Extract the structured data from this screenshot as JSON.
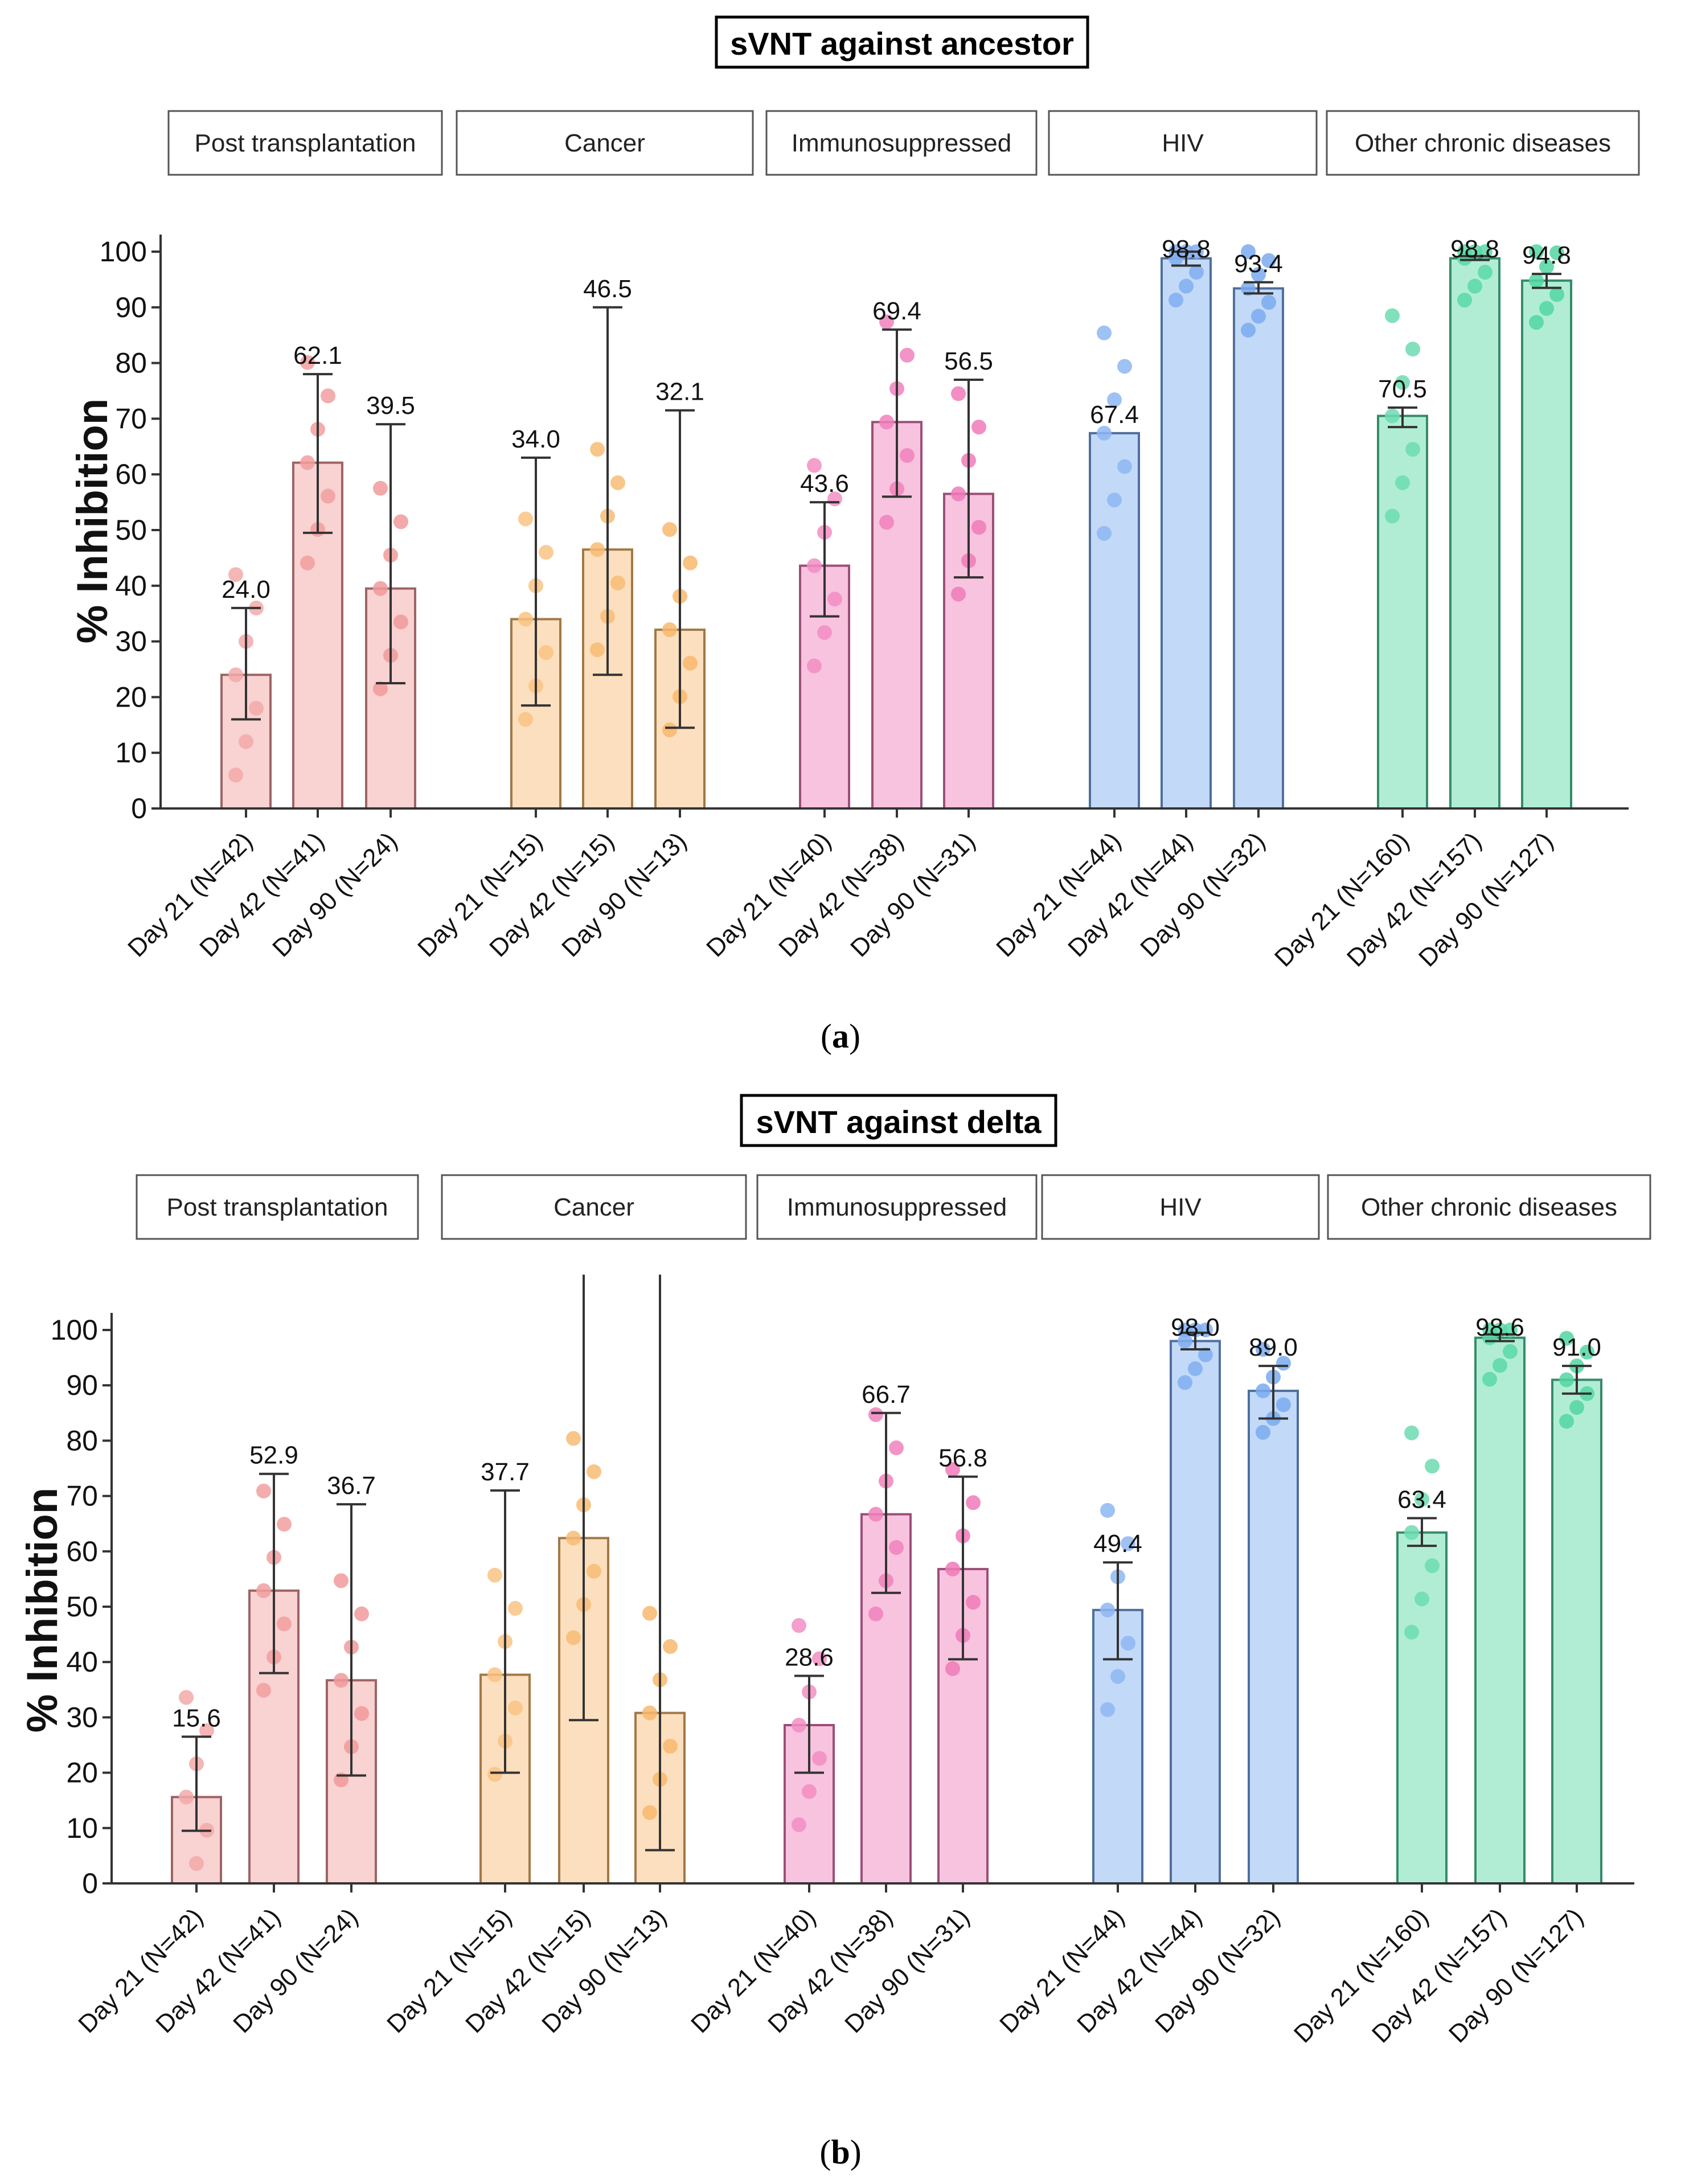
{
  "chart_data": [
    {
      "type": "bar",
      "title": "sVNT against ancestor",
      "caption": "a",
      "ylabel": "% Inhibition",
      "ylim": [
        0,
        100
      ],
      "yticks": [
        "0",
        "10",
        "20",
        "30",
        "40",
        "50",
        "60",
        "70",
        "80",
        "90",
        "100"
      ],
      "groups": [
        {
          "name": "Post transplantation",
          "color": "#f19a9a",
          "bars": [
            {
              "label": "Day 21 (N=42)",
              "value": 24.0,
              "value_label": "24.0",
              "err": [
                16.0,
                36.0
              ]
            },
            {
              "label": "Day 42 (N=41)",
              "value": 62.1,
              "value_label": "62.1",
              "err": [
                49.5,
                78.0
              ]
            },
            {
              "label": "Day 90 (N=24)",
              "value": 39.5,
              "value_label": "39.5",
              "err": [
                22.5,
                69.0
              ]
            }
          ]
        },
        {
          "name": "Cancer",
          "color": "#f8b86e",
          "bars": [
            {
              "label": "Day 21 (N=15)",
              "value": 34.0,
              "value_label": "34.0",
              "err": [
                18.5,
                63.0
              ]
            },
            {
              "label": "Day 42 (N=15)",
              "value": 46.5,
              "value_label": "46.5",
              "err": [
                24.0,
                90.0
              ]
            },
            {
              "label": "Day 90 (N=13)",
              "value": 32.1,
              "value_label": "32.1",
              "err": [
                14.5,
                71.5
              ]
            }
          ]
        },
        {
          "name": "Immunosuppressed",
          "color": "#f07ab8",
          "bars": [
            {
              "label": "Day 21 (N=40)",
              "value": 43.6,
              "value_label": "43.6",
              "err": [
                34.5,
                55.0
              ]
            },
            {
              "label": "Day 42 (N=38)",
              "value": 69.4,
              "value_label": "69.4",
              "err": [
                56.0,
                86.0
              ]
            },
            {
              "label": "Day 90 (N=31)",
              "value": 56.5,
              "value_label": "56.5",
              "err": [
                41.5,
                77.0
              ]
            }
          ]
        },
        {
          "name": "HIV",
          "color": "#7aaaf0",
          "bars": [
            {
              "label": "Day 21 (N=44)",
              "value": 67.4,
              "value_label": "67.4",
              "err": [
                67.4,
                67.4
              ]
            },
            {
              "label": "Day 42 (N=44)",
              "value": 98.8,
              "value_label": "98.8",
              "err": [
                97.5,
                100
              ]
            },
            {
              "label": "Day 90 (N=32)",
              "value": 93.4,
              "value_label": "93.4",
              "err": [
                92.5,
                94.5
              ]
            }
          ]
        },
        {
          "name": "Other chronic diseases",
          "color": "#52d6a2",
          "bars": [
            {
              "label": "Day 21 (N=160)",
              "value": 70.5,
              "value_label": "70.5",
              "err": [
                68.5,
                72.0
              ]
            },
            {
              "label": "Day 42 (N=157)",
              "value": 98.8,
              "value_label": "98.8",
              "err": [
                98.5,
                99.2
              ]
            },
            {
              "label": "Day 90 (N=127)",
              "value": 94.8,
              "value_label": "94.8",
              "err": [
                93.5,
                96.0
              ]
            }
          ]
        }
      ]
    },
    {
      "type": "bar",
      "title": "sVNT against delta",
      "caption": "b",
      "ylabel": "% Inhibition",
      "ylim": [
        0,
        100
      ],
      "yticks": [
        "0",
        "10",
        "20",
        "30",
        "40",
        "50",
        "60",
        "70",
        "80",
        "90",
        "100"
      ],
      "groups": [
        {
          "name": "Post transplantation",
          "color": "#f19a9a",
          "bars": [
            {
              "label": "Day 21 (N=42)",
              "value": 15.6,
              "value_label": "15.6",
              "err": [
                9.5,
                26.5
              ]
            },
            {
              "label": "Day 42 (N=41)",
              "value": 52.9,
              "value_label": "52.9",
              "err": [
                38.0,
                74.0
              ]
            },
            {
              "label": "Day 90 (N=24)",
              "value": 36.7,
              "value_label": "36.7",
              "err": [
                19.5,
                68.5
              ]
            }
          ]
        },
        {
          "name": "Cancer",
          "color": "#f8b86e",
          "bars": [
            {
              "label": "Day 21 (N=15)",
              "value": 37.7,
              "value_label": "37.7",
              "err": [
                20.0,
                71.0
              ]
            },
            {
              "label": "Day 42 (N=15)",
              "value": 62.4,
              "value_label": "",
              "err": [
                29.5,
                110
              ]
            },
            {
              "label": "Day 90 (N=13)",
              "value": 30.8,
              "value_label": "",
              "err": [
                6.0,
                110
              ]
            }
          ]
        },
        {
          "name": "Immunosuppressed",
          "color": "#f07ab8",
          "bars": [
            {
              "label": "Day 21 (N=40)",
              "value": 28.6,
              "value_label": "28.6",
              "err": [
                20.0,
                37.5
              ]
            },
            {
              "label": "Day 42 (N=38)",
              "value": 66.7,
              "value_label": "66.7",
              "err": [
                52.5,
                85.0
              ]
            },
            {
              "label": "Day 90 (N=31)",
              "value": 56.8,
              "value_label": "56.8",
              "err": [
                40.5,
                73.5
              ]
            }
          ]
        },
        {
          "name": "HIV",
          "color": "#7aaaf0",
          "bars": [
            {
              "label": "Day 21 (N=44)",
              "value": 49.4,
              "value_label": "49.4",
              "err": [
                40.5,
                58.0
              ]
            },
            {
              "label": "Day 42 (N=44)",
              "value": 98.0,
              "value_label": "98.0",
              "err": [
                96.5,
                99.5
              ]
            },
            {
              "label": "Day 90 (N=32)",
              "value": 89.0,
              "value_label": "89.0",
              "err": [
                84.0,
                93.5
              ]
            }
          ]
        },
        {
          "name": "Other chronic diseases",
          "color": "#52d6a2",
          "bars": [
            {
              "label": "Day 21 (N=160)",
              "value": 63.4,
              "value_label": "63.4",
              "err": [
                61.0,
                66.0
              ]
            },
            {
              "label": "Day 42 (N=157)",
              "value": 98.6,
              "value_label": "98.6",
              "err": [
                98.0,
                99.2
              ]
            },
            {
              "label": "Day 90 (N=127)",
              "value": 91.0,
              "value_label": "91.0",
              "err": [
                88.5,
                93.5
              ]
            }
          ]
        }
      ]
    }
  ]
}
